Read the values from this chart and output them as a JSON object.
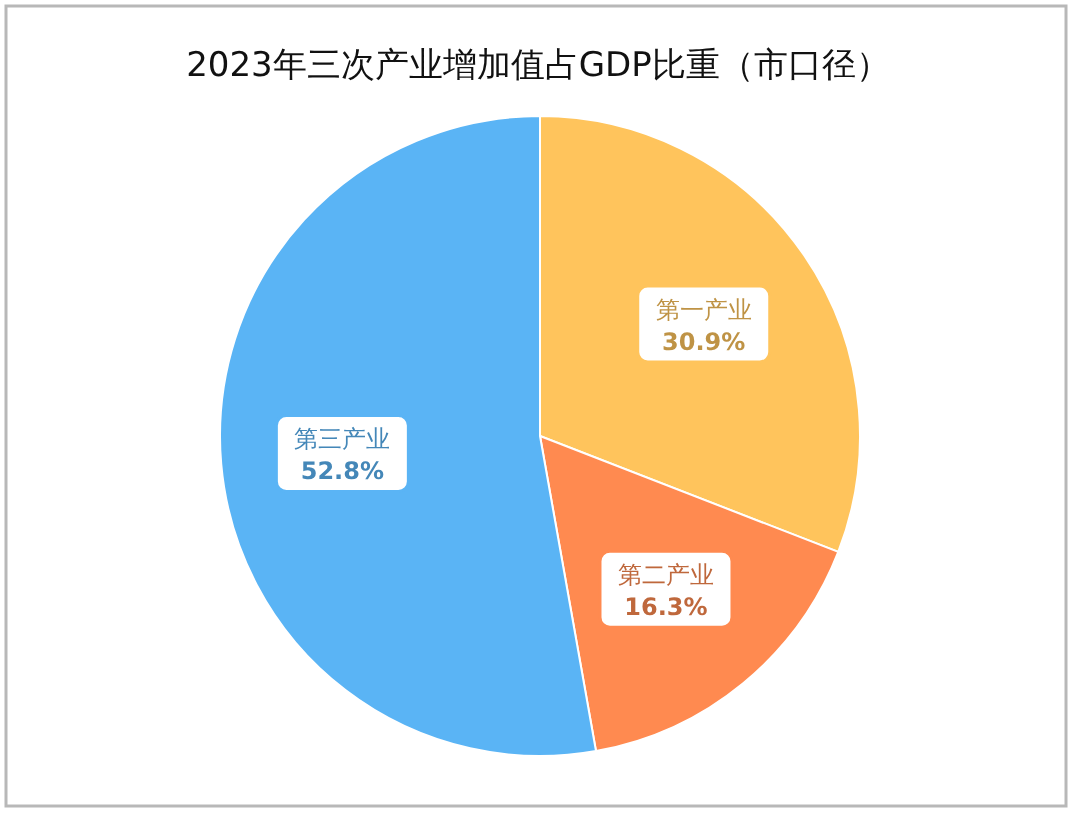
{
  "chart_data": {
    "type": "pie",
    "title": "2023年三次产业增加值占GDP比重（市口径）",
    "categories": [
      "第一产业",
      "第二产业",
      "第三产业"
    ],
    "values": [
      30.9,
      16.3,
      52.8
    ],
    "colors": [
      "#ffc45c",
      "#ff8a50",
      "#5ab4f5"
    ],
    "value_labels": [
      "30.9%",
      "16.3%",
      "52.8%"
    ]
  }
}
